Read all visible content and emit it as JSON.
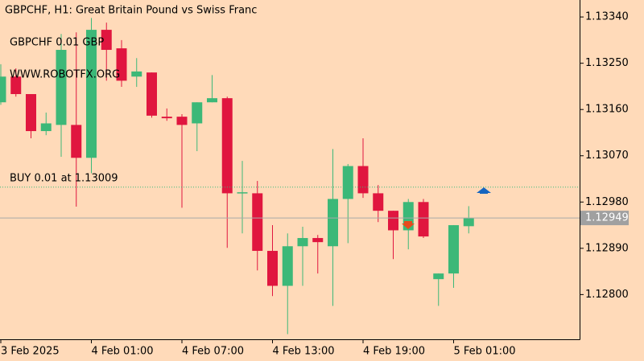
{
  "chart_data": {
    "type": "candlestick",
    "title": "GBPCHF, H1:  Great Britain Pound vs Swiss Franc",
    "annotations": [
      "GBPCHF 0.01 GBP",
      "WWW.ROBOTFX.ORG",
      "BUY 0.01 at 1.13009"
    ],
    "buy_level": 1.13009,
    "current_price": {
      "value": 1.12949,
      "label": "1.12949"
    },
    "up_color": "#3cb878",
    "down_color": "#e0163f",
    "categories": [
      "3 Feb 2025",
      null,
      null,
      null,
      null,
      null,
      "4 Feb 01:00",
      null,
      null,
      null,
      null,
      null,
      "4 Feb 07:00",
      null,
      null,
      null,
      null,
      null,
      "4 Feb 13:00",
      null,
      null,
      null,
      null,
      null,
      "4 Feb 19:00",
      null,
      null,
      null,
      null,
      null,
      "5 Feb 01:00",
      null
    ],
    "open": [
      1.13174,
      1.13224,
      1.1319,
      1.13118,
      1.1313,
      1.1313,
      1.13066,
      1.13315,
      1.13279,
      1.13224,
      1.13232,
      1.13146,
      1.13146,
      1.13133,
      1.13174,
      1.13182,
      1.12997,
      1.12997,
      1.12885,
      1.12817,
      1.12894,
      1.1291,
      1.12894,
      1.12986,
      1.1305,
      1.12997,
      1.12963,
      1.12925,
      1.1298,
      1.1283,
      1.12841,
      1.12933
    ],
    "high": [
      1.13248,
      1.1324,
      1.1319,
      1.13154,
      1.13307,
      1.1331,
      1.13338,
      1.13329,
      1.13295,
      1.1326,
      1.13232,
      1.13162,
      1.13151,
      1.13174,
      1.13227,
      1.13185,
      1.1306,
      1.13021,
      1.12935,
      1.12919,
      1.12932,
      1.12916,
      1.13083,
      1.13054,
      1.13104,
      1.13013,
      1.12963,
      1.12986,
      1.12986,
      1.12841,
      1.12935,
      1.12972
    ],
    "low": [
      1.13169,
      1.13185,
      1.13104,
      1.1311,
      1.13068,
      1.12971,
      1.13036,
      1.13216,
      1.13204,
      1.13204,
      1.13144,
      1.13138,
      1.12969,
      1.13079,
      1.13174,
      1.12891,
      1.12919,
      1.12847,
      1.12797,
      1.12723,
      1.12817,
      1.12841,
      1.12778,
      1.129,
      1.12988,
      1.12941,
      1.12869,
      1.12888,
      1.1291,
      1.12778,
      1.12813,
      1.12919
    ],
    "close": [
      1.13224,
      1.1319,
      1.13118,
      1.13133,
      1.13276,
      1.13066,
      1.13315,
      1.13276,
      1.13216,
      1.13234,
      1.13148,
      1.13143,
      1.1313,
      1.13174,
      1.13182,
      1.12997,
      1.12999,
      1.12885,
      1.12817,
      1.12894,
      1.1291,
      1.12902,
      1.12986,
      1.1305,
      1.12997,
      1.12963,
      1.12925,
      1.1298,
      1.12913,
      1.12841,
      1.12935,
      1.12949
    ],
    "ylim": [
      1.12713,
      1.13373
    ],
    "yticks": [
      {
        "value": 1.128,
        "label": "1.12800"
      },
      {
        "value": 1.1289,
        "label": "1.12890"
      },
      {
        "value": 1.1298,
        "label": "1.12980"
      },
      {
        "value": 1.1307,
        "label": "1.13070"
      },
      {
        "value": 1.1316,
        "label": "1.13160"
      },
      {
        "value": 1.1325,
        "label": "1.13250"
      },
      {
        "value": 1.1334,
        "label": "1.13340"
      }
    ]
  }
}
